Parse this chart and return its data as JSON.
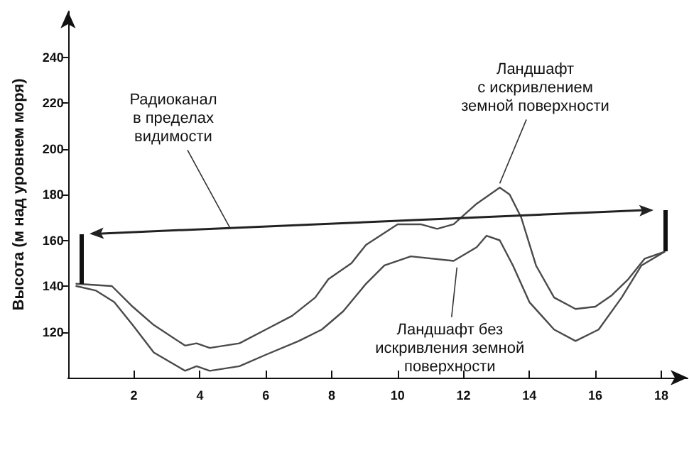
{
  "chart_data": {
    "type": "line",
    "ylabel": "Высота (м над уровнем моря)",
    "xlim": [
      0,
      18.8
    ],
    "ylim": [
      100,
      260
    ],
    "xticks": [
      2,
      4,
      6,
      8,
      10,
      12,
      14,
      16,
      18
    ],
    "yticks": [
      120,
      140,
      160,
      180,
      200,
      220,
      240
    ],
    "grid": false,
    "marker": "none",
    "line_style": "solid",
    "series": [
      {
        "color": "#4a4a4a",
        "x": [
          0.25,
          1.33,
          1.96,
          2.6,
          3.55,
          3.9,
          4.3,
          5.2,
          6,
          6.8,
          7.5,
          7.9,
          8.6,
          9.04,
          10,
          10.7,
          11.2,
          11.7,
          12.4,
          13.1,
          13.4,
          13.75,
          14.2,
          14.75,
          15.4,
          16,
          16.5,
          17,
          17.5,
          18.1
        ],
        "values": [
          141,
          140,
          131,
          123,
          114,
          115,
          113,
          115,
          121,
          127,
          135,
          143,
          150,
          158,
          167,
          167,
          165,
          167,
          176,
          183,
          180,
          170,
          149,
          135,
          130,
          131,
          136,
          143,
          152,
          155
        ]
      },
      {
        "color": "#4a4a4a",
        "x": [
          0.25,
          0.85,
          1.4,
          1.96,
          2.6,
          3.55,
          3.9,
          4.3,
          5.2,
          6,
          7,
          7.7,
          8.35,
          9.04,
          9.6,
          10.4,
          11.7,
          12.4,
          12.7,
          13.1,
          13.5,
          14,
          14.75,
          15.4,
          16.1,
          16.8,
          17.4,
          18.1
        ],
        "values": [
          140,
          138,
          133,
          123,
          111,
          103,
          105,
          103,
          105,
          110,
          116,
          121,
          129,
          141,
          149,
          153,
          151,
          157,
          162,
          160,
          149,
          133,
          121,
          116,
          121,
          135,
          149,
          155
        ]
      }
    ],
    "annotations": [
      {
        "text": "Радиоканал\nв пределах\nвидимости"
      },
      {
        "text": "Ландшафт\nс искривлением\nземной поверхности",
        "x": 13.1,
        "y": 183
      },
      {
        "text": "Ландшафт без\nискривления земной\nповерхности",
        "x": 11.8,
        "y": 150
      }
    ]
  }
}
